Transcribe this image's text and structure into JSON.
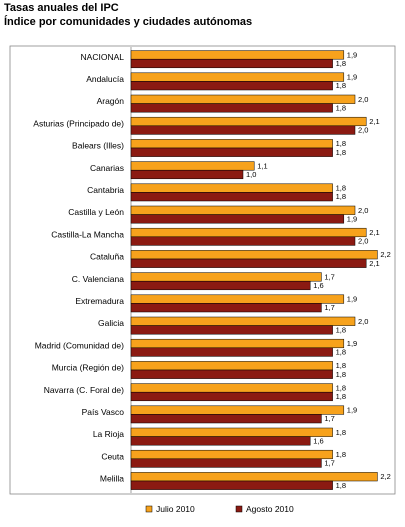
{
  "chart_data": {
    "type": "bar",
    "orientation": "horizontal",
    "title": "Tasas anuales del IPC",
    "subtitle": "Índice por comunidades y ciudades autónomas",
    "categories": [
      "NACIONAL",
      "Andalucía",
      "Aragón",
      "Asturias (Principado de)",
      "Balears (Illes)",
      "Canarias",
      "Cantabria",
      "Castilla y León",
      "Castilla-La Mancha",
      "Cataluña",
      "C. Valenciana",
      "Extremadura",
      "Galicia",
      "Madrid (Comunidad de)",
      "Murcia (Región de)",
      "Navarra (C. Foral de)",
      "País Vasco",
      "La Rioja",
      "Ceuta",
      "Melilla"
    ],
    "series": [
      {
        "name": "Julio 2010",
        "color": "#f7a21c",
        "values": [
          1.9,
          1.9,
          2.0,
          2.1,
          1.8,
          1.1,
          1.8,
          2.0,
          2.1,
          2.2,
          1.7,
          1.9,
          2.0,
          1.9,
          1.8,
          1.8,
          1.9,
          1.8,
          1.8,
          2.2
        ],
        "labels": [
          "1,9",
          "1,9",
          "2,0",
          "2,1",
          "1,8",
          "1,1",
          "1,8",
          "2,0",
          "2,1",
          "2,2",
          "1,7",
          "1,9",
          "2,0",
          "1,9",
          "1,8",
          "1,8",
          "1,9",
          "1,8",
          "1,8",
          "2,2"
        ]
      },
      {
        "name": "Agosto 2010",
        "color": "#8b1a12",
        "values": [
          1.8,
          1.8,
          1.8,
          2.0,
          1.8,
          1.0,
          1.8,
          1.9,
          2.0,
          2.1,
          1.6,
          1.7,
          1.8,
          1.8,
          1.8,
          1.8,
          1.7,
          1.6,
          1.7,
          1.8
        ],
        "labels": [
          "1,8",
          "1,8",
          "1,8",
          "2,0",
          "1,8",
          "1,0",
          "1,8",
          "1,9",
          "2,0",
          "2,1",
          "1,6",
          "1,7",
          "1,8",
          "1,8",
          "1,8",
          "1,8",
          "1,7",
          "1,6",
          "1,7",
          "1,8"
        ]
      }
    ],
    "xlim": [
      0,
      2.2
    ],
    "grid": false,
    "legend": "bottom"
  }
}
